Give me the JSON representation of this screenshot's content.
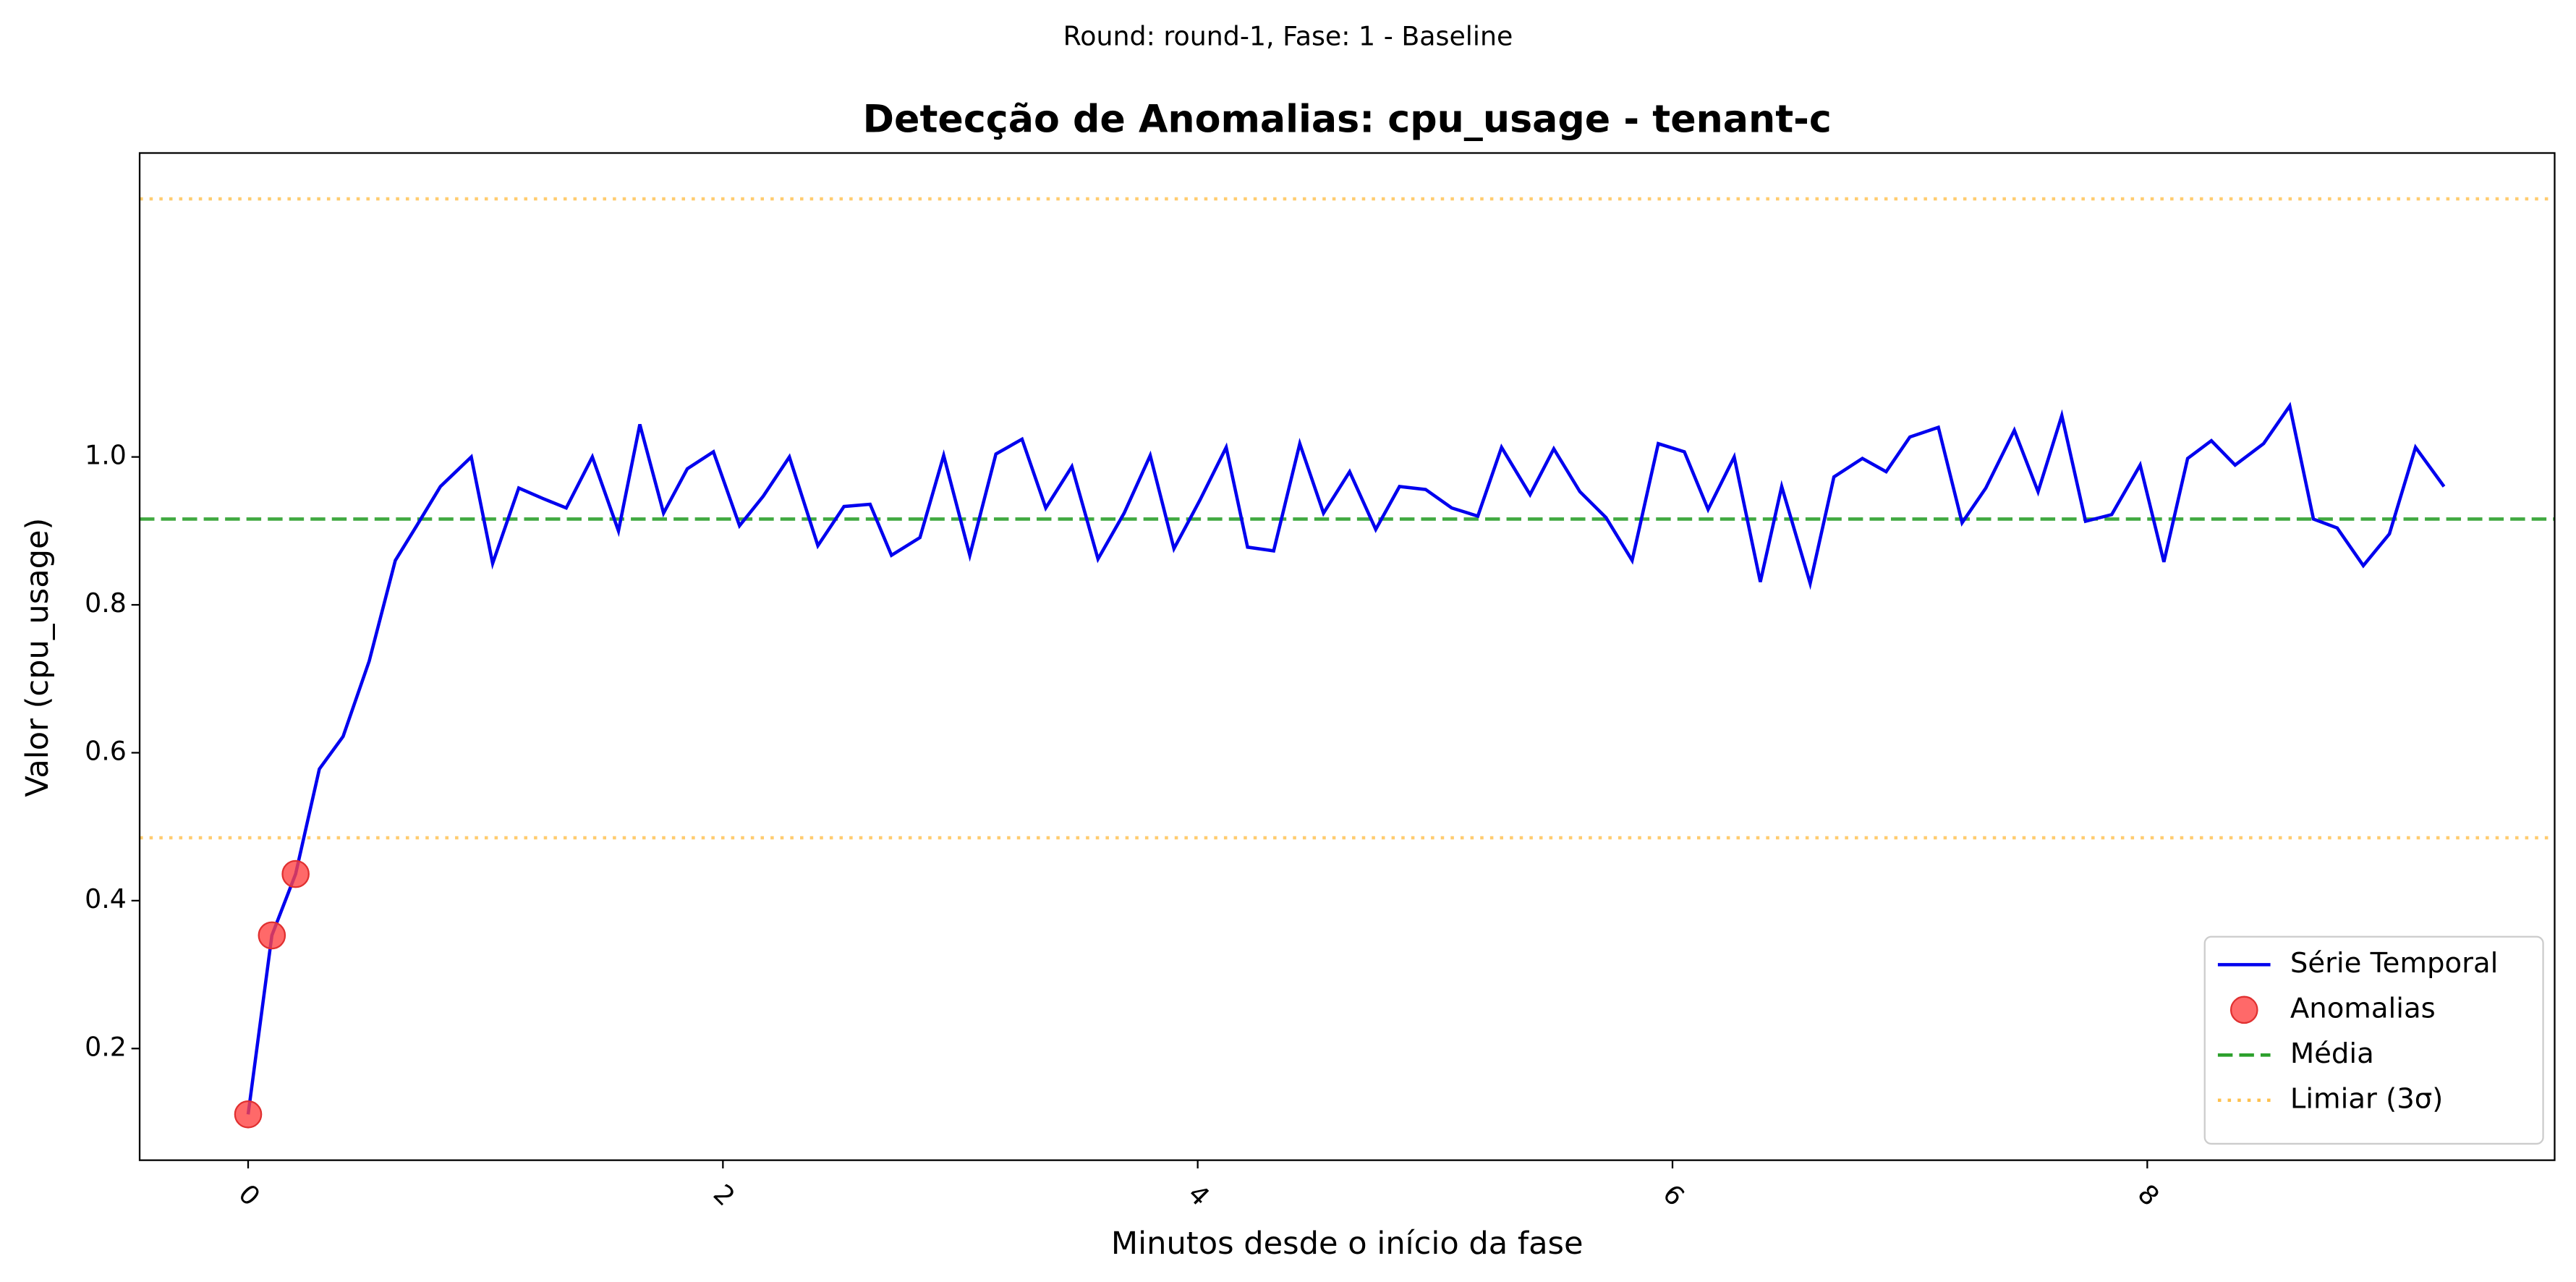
{
  "chart_data": {
    "type": "line",
    "suptitle": "Round: round-1, Fase: 1 - Baseline",
    "title": "Detecção de Anomalias: cpu_usage - tenant-c",
    "x_label": "Minutos desde o início da fase",
    "y_label": "Valor (cpu_usage)",
    "x": [
      0,
      0.1,
      0.2,
      0.3,
      0.4,
      0.51,
      0.62,
      0.71,
      0.81,
      0.94,
      1.03,
      1.14,
      1.24,
      1.34,
      1.45,
      1.56,
      1.65,
      1.75,
      1.85,
      1.96,
      2.07,
      2.17,
      2.28,
      2.4,
      2.51,
      2.62,
      2.71,
      2.83,
      2.93,
      3.04,
      3.15,
      3.26,
      3.36,
      3.47,
      3.58,
      3.69,
      3.8,
      3.9,
      4.01,
      4.12,
      4.21,
      4.32,
      4.43,
      4.53,
      4.64,
      4.75,
      4.85,
      4.96,
      5.07,
      5.18,
      5.28,
      5.4,
      5.5,
      5.61,
      5.72,
      5.83,
      5.94,
      6.05,
      6.15,
      6.26,
      6.37,
      6.46,
      6.58,
      6.68,
      6.8,
      6.9,
      7.0,
      7.12,
      7.22,
      7.32,
      7.44,
      7.54,
      7.64,
      7.74,
      7.85,
      7.97,
      8.07,
      8.17,
      8.27,
      8.37,
      8.49,
      8.6,
      8.7,
      8.8,
      8.91,
      9.02,
      9.13,
      9.25
    ],
    "series": [
      {
        "name": "Série Temporal",
        "color": "#0000ee",
        "values": [
          0.111,
          0.353,
          0.436,
          0.578,
          0.622,
          0.724,
          0.86,
          0.907,
          0.96,
          1.0,
          0.856,
          0.958,
          0.944,
          0.931,
          1.0,
          0.9,
          1.044,
          0.924,
          0.984,
          1.007,
          0.907,
          0.947,
          1.0,
          0.88,
          0.933,
          0.936,
          0.867,
          0.891,
          1.002,
          0.867,
          1.004,
          1.024,
          0.931,
          0.987,
          0.862,
          0.924,
          1.002,
          0.876,
          0.942,
          1.013,
          0.878,
          0.873,
          1.018,
          0.924,
          0.98,
          0.902,
          0.96,
          0.956,
          0.931,
          0.92,
          1.013,
          0.949,
          1.011,
          0.953,
          0.918,
          0.86,
          1.018,
          1.007,
          0.929,
          1.0,
          0.831,
          0.96,
          0.829,
          0.973,
          0.998,
          0.98,
          1.027,
          1.04,
          0.911,
          0.958,
          1.036,
          0.953,
          1.056,
          0.913,
          0.922,
          0.989,
          0.858,
          0.998,
          1.022,
          0.989,
          1.018,
          1.069,
          0.916,
          0.904,
          0.853,
          0.896,
          1.013,
          0.96
        ]
      }
    ],
    "anomalies": {
      "name": "Anomalias",
      "color": "#ff4444",
      "x": [
        0,
        0.1,
        0.2
      ],
      "values": [
        0.111,
        0.353,
        0.436
      ]
    },
    "hlines": [
      {
        "name": "Média",
        "color": "#2ca02c",
        "style": "dashed",
        "values": [
          0.916
        ]
      },
      {
        "name": "Limiar (3σ)",
        "color": "#ffc04d",
        "style": "dotted",
        "values": [
          1.349,
          0.485
        ]
      }
    ],
    "xlim": [
      -0.457,
      9.716
    ],
    "ylim": [
      0.049,
      1.411
    ],
    "xticks": [
      0,
      2,
      4,
      6,
      8
    ],
    "yticks": [
      0.2,
      0.4,
      0.6,
      0.8,
      {
        "value": 1.0,
        "label": "1.0"
      },
      0.2,
      0.4
    ],
    "legend": "lower right"
  }
}
